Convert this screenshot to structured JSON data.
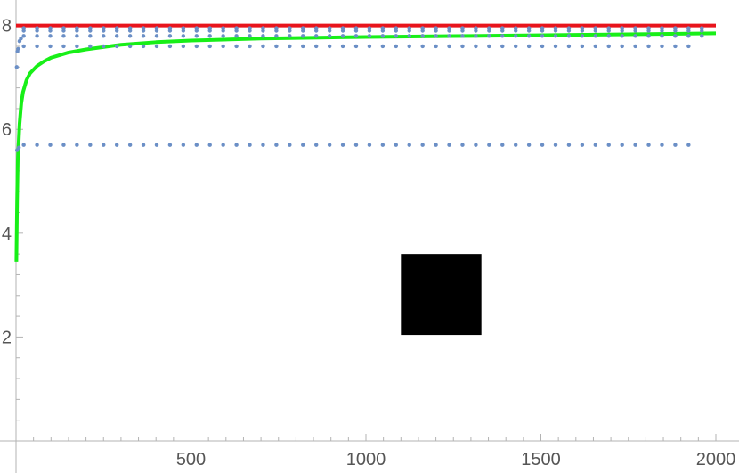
{
  "chart_data": {
    "type": "scatter",
    "title": "",
    "xlabel": "",
    "ylabel": "",
    "xlim": [
      0,
      2000
    ],
    "ylim": [
      0,
      8.2
    ],
    "x_ticks": [
      500,
      1000,
      1500,
      2000
    ],
    "x_tick_labels": [
      "500",
      "1000",
      "1500",
      "2000"
    ],
    "y_ticks": [
      2,
      4,
      6,
      8
    ],
    "y_tick_labels": [
      "2",
      "4",
      "6",
      "8"
    ],
    "grid": false,
    "legend": "none",
    "series": [
      {
        "type": "line",
        "color": "#e8141c",
        "x": [
          0,
          2000
        ],
        "y": [
          8,
          8
        ]
      },
      {
        "type": "line",
        "color": "#18ef18",
        "x": [
          1,
          3,
          5,
          10,
          15,
          20,
          30,
          40,
          60,
          80,
          100,
          150,
          200,
          300,
          400,
          500,
          700,
          1000,
          1300,
          1600,
          2000
        ],
        "y": [
          3.45,
          4.6,
          5.4,
          6.1,
          6.5,
          6.72,
          6.95,
          7.08,
          7.22,
          7.31,
          7.38,
          7.48,
          7.54,
          7.63,
          7.68,
          7.71,
          7.75,
          7.78,
          7.8,
          7.82,
          7.85
        ]
      },
      {
        "type": "scatter",
        "color": "#6b8fc6",
        "groups": [
          {
            "y": 5.7,
            "x_start": 22,
            "x_end": 1930,
            "step": 38
          },
          {
            "y": 7.6,
            "x_start": 22,
            "x_end": 1930,
            "step": 38
          },
          {
            "y": 7.8,
            "x_start": 22,
            "x_end": 1980,
            "step": 38
          },
          {
            "y": 7.9,
            "x_start": 22,
            "x_end": 1980,
            "step": 38
          },
          {
            "y": 7.95,
            "x_start": 22,
            "x_end": 1990,
            "step": 38
          }
        ]
      }
    ],
    "annotations": [
      {
        "type": "redaction-box",
        "color": "#000000",
        "x": [
          1100,
          1330
        ],
        "y": [
          2.04,
          3.6
        ]
      }
    ]
  }
}
